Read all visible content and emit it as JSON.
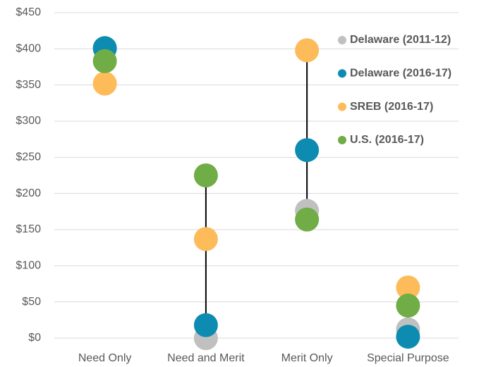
{
  "chart_data": {
    "type": "dot",
    "categories": [
      "Need Only",
      "Need and Merit",
      "Merit Only",
      "Special Purpose"
    ],
    "series": [
      {
        "name": "Delaware (2011-12)",
        "color": "#c0c0c0",
        "values": [
          400,
          0,
          176,
          12
        ]
      },
      {
        "name": "Delaware (2016-17)",
        "color": "#0e8bb0",
        "values": [
          401,
          18,
          260,
          2
        ]
      },
      {
        "name": "SREB (2016-17)",
        "color": "#fdbb5a",
        "values": [
          352,
          137,
          398,
          70
        ]
      },
      {
        "name": "U.S. (2016-17)",
        "color": "#70ad47",
        "values": [
          383,
          225,
          164,
          45
        ]
      }
    ],
    "ylim": [
      0,
      450
    ],
    "yticks": [
      {
        "value": 0,
        "label": "$0"
      },
      {
        "value": 50,
        "label": "$50"
      },
      {
        "value": 100,
        "label": "$100"
      },
      {
        "value": 150,
        "label": "$150"
      },
      {
        "value": 200,
        "label": "$200"
      },
      {
        "value": 250,
        "label": "$250"
      },
      {
        "value": 300,
        "label": "$300"
      },
      {
        "value": 350,
        "label": "$350"
      },
      {
        "value": 400,
        "label": "$400"
      },
      {
        "value": 450,
        "label": "$450"
      }
    ],
    "grid": true,
    "legend": "upper right"
  }
}
